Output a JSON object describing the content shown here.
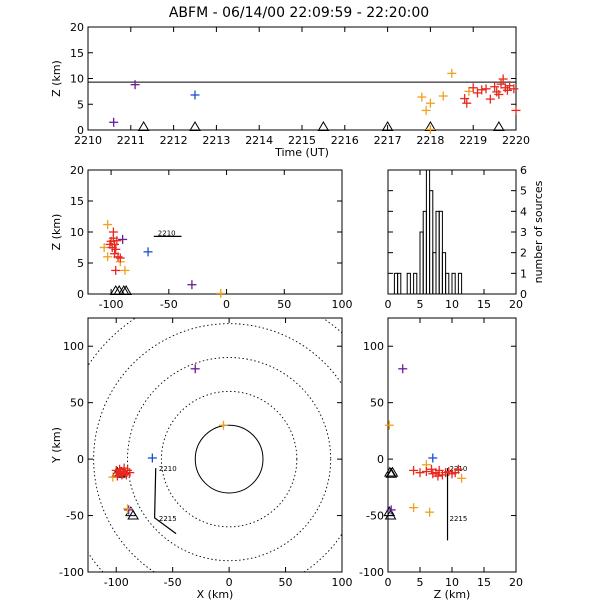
{
  "title": "ABFM - 06/14/00 22:09:59 - 22:20:00",
  "colors": {
    "axis": "#000000",
    "purple": "#6a1b9a",
    "blue": "#1a4fd6",
    "orange": "#f0a020",
    "red": "#e8281e",
    "black": "#000000"
  },
  "chart_data": [
    {
      "id": "time_height",
      "type": "scatter",
      "xlabel": "Time (UT)",
      "ylabel": "Z (km)",
      "xlim": [
        2210,
        2220
      ],
      "ylim": [
        0,
        20
      ],
      "xticks": [
        "2210",
        "2211",
        "2212",
        "2213",
        "2214",
        "2215",
        "2216",
        "2217",
        "2218",
        "2219",
        "2220"
      ],
      "yticks": [
        "0",
        "5",
        "10",
        "15",
        "20"
      ],
      "hline": 9.3,
      "stations_x": [
        2211.3,
        2212.5,
        2215.5,
        2217.0,
        2218.0,
        2219.6
      ],
      "points": [
        {
          "x": 2210.6,
          "y": 1.5,
          "c": "purple"
        },
        {
          "x": 2211.1,
          "y": 8.8,
          "c": "purple"
        },
        {
          "x": 2212.5,
          "y": 6.8,
          "c": "blue"
        },
        {
          "x": 2217.8,
          "y": 6.4,
          "c": "orange"
        },
        {
          "x": 2218.0,
          "y": 5.2,
          "c": "orange"
        },
        {
          "x": 2217.9,
          "y": 3.8,
          "c": "orange"
        },
        {
          "x": 2218.3,
          "y": 6.6,
          "c": "orange"
        },
        {
          "x": 2218.5,
          "y": 11.0,
          "c": "orange"
        },
        {
          "x": 2218.9,
          "y": 7.5,
          "c": "orange"
        },
        {
          "x": 2218.0,
          "y": 0.1,
          "c": "orange"
        },
        {
          "x": 2218.8,
          "y": 6.1,
          "c": "red"
        },
        {
          "x": 2218.85,
          "y": 5.2,
          "c": "red"
        },
        {
          "x": 2219.0,
          "y": 8.2,
          "c": "red"
        },
        {
          "x": 2219.2,
          "y": 7.8,
          "c": "red"
        },
        {
          "x": 2219.3,
          "y": 8.0,
          "c": "red"
        },
        {
          "x": 2219.4,
          "y": 6.0,
          "c": "red"
        },
        {
          "x": 2219.5,
          "y": 8.4,
          "c": "red"
        },
        {
          "x": 2219.55,
          "y": 7.4,
          "c": "red"
        },
        {
          "x": 2219.65,
          "y": 8.9,
          "c": "red"
        },
        {
          "x": 2219.7,
          "y": 9.9,
          "c": "red"
        },
        {
          "x": 2219.75,
          "y": 8.2,
          "c": "red"
        },
        {
          "x": 2219.8,
          "y": 7.7,
          "c": "red"
        },
        {
          "x": 2219.85,
          "y": 8.6,
          "c": "red"
        },
        {
          "x": 2219.95,
          "y": 8.0,
          "c": "red"
        },
        {
          "x": 2220.0,
          "y": 3.8,
          "c": "red"
        },
        {
          "x": 2219.1,
          "y": 7.2,
          "c": "red"
        },
        {
          "x": 2219.6,
          "y": 6.9,
          "c": "red"
        }
      ]
    },
    {
      "id": "x_height",
      "type": "scatter",
      "xlabel": "",
      "ylabel": "Z (km)",
      "xlim": [
        -120,
        100
      ],
      "ylim": [
        0,
        20
      ],
      "xticks": [
        "-100",
        "-50",
        "0",
        "50",
        "100"
      ],
      "yticks": [
        "0",
        "5",
        "10",
        "15",
        "20"
      ],
      "stations_x": [
        -96,
        -93,
        -89,
        -87
      ],
      "track": [
        [
          -63,
          9.3
        ],
        [
          -39,
          9.3
        ]
      ],
      "track_label": "2210",
      "points": [
        {
          "x": -30,
          "y": 1.5,
          "c": "purple"
        },
        {
          "x": -90,
          "y": 8.8,
          "c": "purple"
        },
        {
          "x": -68,
          "y": 6.8,
          "c": "blue"
        },
        {
          "x": -103,
          "y": 11.2,
          "c": "orange"
        },
        {
          "x": -106,
          "y": 7.5,
          "c": "orange"
        },
        {
          "x": -103,
          "y": 6.0,
          "c": "orange"
        },
        {
          "x": -92,
          "y": 5.2,
          "c": "orange"
        },
        {
          "x": -88,
          "y": 3.8,
          "c": "orange"
        },
        {
          "x": -5,
          "y": 0.1,
          "c": "orange"
        },
        {
          "x": -98,
          "y": 10.0,
          "c": "red"
        },
        {
          "x": -100,
          "y": 8.5,
          "c": "red"
        },
        {
          "x": -97,
          "y": 8.0,
          "c": "red"
        },
        {
          "x": -99,
          "y": 7.5,
          "c": "red"
        },
        {
          "x": -96,
          "y": 7.2,
          "c": "red"
        },
        {
          "x": -101,
          "y": 8.0,
          "c": "red"
        },
        {
          "x": -97,
          "y": 6.5,
          "c": "red"
        },
        {
          "x": -94,
          "y": 6.0,
          "c": "red"
        },
        {
          "x": -96,
          "y": 3.8,
          "c": "red"
        },
        {
          "x": -98,
          "y": 9.0,
          "c": "red"
        },
        {
          "x": -95,
          "y": 8.6,
          "c": "red"
        },
        {
          "x": -92,
          "y": 5.8,
          "c": "red"
        }
      ]
    },
    {
      "id": "histogram",
      "type": "bar",
      "ylabel": "number of sources",
      "xlim": [
        0,
        20
      ],
      "ylim": [
        0,
        6
      ],
      "xticks": [
        "0",
        "5",
        "10",
        "15",
        "20"
      ],
      "yticks": [
        "0",
        "1",
        "2",
        "3",
        "4",
        "5",
        "6"
      ],
      "bin_width": 0.5,
      "bins_start": [
        1.0,
        1.5,
        2.0,
        2.5,
        3.0,
        3.5,
        4.0,
        4.5,
        5.0,
        5.5,
        6.0,
        6.5,
        7.0,
        7.5,
        8.0,
        8.5,
        9.0,
        9.5,
        10.0,
        10.5,
        11.0
      ],
      "counts": [
        1,
        1,
        0,
        0,
        1,
        0,
        1,
        0,
        3,
        4,
        6,
        5,
        2,
        4,
        4,
        2,
        1,
        0,
        1,
        0,
        1
      ]
    },
    {
      "id": "plan",
      "type": "scatter",
      "xlabel": "X (km)",
      "ylabel": "Y (km)",
      "xlim": [
        -125,
        100
      ],
      "ylim": [
        -100,
        125
      ],
      "xticks": [
        "-100",
        "-50",
        "0",
        "50",
        "100"
      ],
      "yticks": [
        "-100",
        "-50",
        "0",
        "50",
        "100"
      ],
      "range_rings_km": [
        30,
        60,
        90,
        120,
        150
      ],
      "stations": [
        [
          -99,
          -12
        ],
        [
          -97,
          -13
        ],
        [
          -95,
          -12
        ],
        [
          -87,
          -47
        ],
        [
          -85,
          -50
        ]
      ],
      "track": [
        [
          -65,
          -8
        ],
        [
          -66,
          -52
        ],
        [
          -47,
          -66
        ]
      ],
      "track_labels": [
        {
          "text": "2210",
          "x": -64,
          "y": -8
        },
        {
          "text": "2215",
          "x": -64,
          "y": -52
        }
      ],
      "points": [
        {
          "x": -30,
          "y": 80,
          "c": "purple"
        },
        {
          "x": -89,
          "y": -45,
          "c": "purple"
        },
        {
          "x": -68,
          "y": 1,
          "c": "blue"
        },
        {
          "x": -5,
          "y": 30,
          "c": "orange"
        },
        {
          "x": -103,
          "y": -16,
          "c": "orange"
        },
        {
          "x": -90,
          "y": -44,
          "c": "orange"
        },
        {
          "x": -100,
          "y": -10,
          "c": "red"
        },
        {
          "x": -98,
          "y": -12,
          "c": "red"
        },
        {
          "x": -96,
          "y": -11,
          "c": "red"
        },
        {
          "x": -94,
          "y": -13,
          "c": "red"
        },
        {
          "x": -92,
          "y": -12,
          "c": "red"
        },
        {
          "x": -97,
          "y": -9,
          "c": "red"
        },
        {
          "x": -95,
          "y": -14,
          "c": "red"
        },
        {
          "x": -90,
          "y": -10,
          "c": "red"
        },
        {
          "x": -88,
          "y": -12,
          "c": "red"
        },
        {
          "x": -99,
          "y": -15,
          "c": "red"
        },
        {
          "x": -93,
          "y": -8,
          "c": "red"
        },
        {
          "x": -91,
          "y": -14,
          "c": "red"
        }
      ]
    },
    {
      "id": "height_y",
      "type": "scatter",
      "xlabel": "Z (km)",
      "ylabel": "",
      "xlim": [
        0,
        20
      ],
      "ylim": [
        -100,
        125
      ],
      "xticks": [
        "0",
        "5",
        "10",
        "15",
        "20"
      ],
      "yticks": [
        "-100",
        "-50",
        "0",
        "50",
        "100"
      ],
      "stations": [
        [
          0.3,
          -12
        ],
        [
          0.5,
          -13
        ],
        [
          0.7,
          -12
        ],
        [
          0.2,
          -47
        ],
        [
          0.4,
          -50
        ]
      ],
      "track": [
        [
          9.3,
          -8
        ],
        [
          9.3,
          -72
        ]
      ],
      "track_labels": [
        {
          "text": "2210",
          "x": 9.3,
          "y": -8
        },
        {
          "text": "2215",
          "x": 9.3,
          "y": -52
        }
      ],
      "points": [
        {
          "x": 2.3,
          "y": 80,
          "c": "purple"
        },
        {
          "x": 0.5,
          "y": -45,
          "c": "purple"
        },
        {
          "x": 7,
          "y": 1,
          "c": "blue"
        },
        {
          "x": 0.2,
          "y": 30,
          "c": "orange"
        },
        {
          "x": 4,
          "y": -43,
          "c": "orange"
        },
        {
          "x": 11.5,
          "y": -17,
          "c": "orange"
        },
        {
          "x": 6.5,
          "y": -47,
          "c": "orange"
        },
        {
          "x": 6,
          "y": -5,
          "c": "orange"
        },
        {
          "x": 4,
          "y": -10,
          "c": "red"
        },
        {
          "x": 5,
          "y": -12,
          "c": "red"
        },
        {
          "x": 6,
          "y": -11,
          "c": "red"
        },
        {
          "x": 7,
          "y": -13,
          "c": "red"
        },
        {
          "x": 7.5,
          "y": -12,
          "c": "red"
        },
        {
          "x": 8,
          "y": -10,
          "c": "red"
        },
        {
          "x": 8.5,
          "y": -14,
          "c": "red"
        },
        {
          "x": 9,
          "y": -12,
          "c": "red"
        },
        {
          "x": 9.5,
          "y": -11,
          "c": "red"
        },
        {
          "x": 10,
          "y": -13,
          "c": "red"
        },
        {
          "x": 10.5,
          "y": -12,
          "c": "red"
        },
        {
          "x": 11,
          "y": -9,
          "c": "red"
        },
        {
          "x": 7.8,
          "y": -15,
          "c": "red"
        },
        {
          "x": 6.8,
          "y": -9,
          "c": "red"
        }
      ]
    }
  ]
}
